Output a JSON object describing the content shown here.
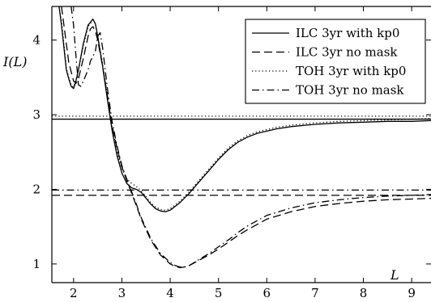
{
  "chart_data": {
    "type": "line",
    "title": "",
    "xlabel": "L",
    "ylabel": "I(L)",
    "xlim": [
      1.55,
      9.4
    ],
    "ylim": [
      0.75,
      4.45
    ],
    "x_ticks": [
      2,
      3,
      4,
      5,
      6,
      7,
      8,
      9
    ],
    "y_ticks": [
      1,
      2,
      3,
      4
    ],
    "x_tick_labels": [
      "2",
      "3",
      "4",
      "5",
      "6",
      "7",
      "8",
      "9"
    ],
    "y_tick_labels": [
      "1",
      "2",
      "3",
      "4"
    ],
    "grid": false,
    "legend_position": "top-right",
    "series": [
      {
        "name": "ILC 3yr with kp0",
        "style": "solid",
        "x": [
          1.7,
          1.75,
          1.8,
          1.85,
          1.9,
          1.95,
          2.0,
          2.05,
          2.1,
          2.2,
          2.3,
          2.4,
          2.45,
          2.5,
          2.6,
          2.7,
          2.8,
          2.9,
          3.0,
          3.1,
          3.2,
          3.3,
          3.4,
          3.5,
          3.6,
          3.7,
          3.8,
          3.9,
          4.0,
          4.2,
          4.4,
          4.6,
          4.8,
          5.0,
          5.2,
          5.4,
          5.6,
          5.8,
          6.0,
          6.2,
          6.5,
          7.0,
          7.5,
          8.0,
          8.5,
          9.0,
          9.4
        ],
        "y": [
          4.45,
          4.2,
          3.9,
          3.6,
          3.48,
          3.38,
          3.35,
          3.45,
          3.6,
          3.95,
          4.2,
          4.28,
          4.22,
          4.05,
          3.65,
          3.2,
          2.78,
          2.45,
          2.22,
          2.08,
          2.02,
          2.0,
          1.96,
          1.88,
          1.8,
          1.74,
          1.71,
          1.7,
          1.72,
          1.82,
          1.95,
          2.1,
          2.25,
          2.4,
          2.53,
          2.63,
          2.7,
          2.75,
          2.78,
          2.81,
          2.84,
          2.87,
          2.89,
          2.9,
          2.91,
          2.91,
          2.92
        ]
      },
      {
        "name": "ILC 3yr no mask",
        "style": "dashed",
        "x": [
          1.75,
          1.8,
          1.9,
          2.0,
          2.05,
          2.1,
          2.2,
          2.3,
          2.35,
          2.4,
          2.45,
          2.5,
          2.6,
          2.7,
          2.8,
          2.9,
          3.0,
          3.1,
          3.2,
          3.3,
          3.4,
          3.6,
          3.8,
          4.0,
          4.1,
          4.2,
          4.3,
          4.4,
          4.6,
          4.8,
          5.0,
          5.2,
          5.4,
          5.6,
          5.8,
          6.0,
          6.5,
          7.0,
          7.5,
          8.0,
          8.5,
          9.0,
          9.4
        ],
        "y": [
          4.45,
          4.2,
          3.7,
          3.45,
          3.42,
          3.48,
          3.75,
          4.05,
          4.15,
          4.18,
          4.12,
          4.0,
          3.65,
          3.25,
          2.85,
          2.55,
          2.3,
          2.12,
          1.95,
          1.78,
          1.6,
          1.32,
          1.12,
          1.0,
          0.97,
          0.95,
          0.96,
          0.98,
          1.05,
          1.12,
          1.2,
          1.29,
          1.38,
          1.46,
          1.53,
          1.6,
          1.7,
          1.77,
          1.81,
          1.84,
          1.86,
          1.87,
          1.88
        ]
      },
      {
        "name": "TOH 3yr with kp0",
        "style": "dotted",
        "x": [
          1.7,
          1.75,
          1.8,
          1.85,
          1.9,
          1.95,
          2.0,
          2.05,
          2.1,
          2.2,
          2.3,
          2.4,
          2.45,
          2.5,
          2.6,
          2.7,
          2.8,
          2.9,
          3.0,
          3.1,
          3.2,
          3.3,
          3.4,
          3.5,
          3.6,
          3.7,
          3.8,
          3.9,
          4.0,
          4.2,
          4.4,
          4.6,
          4.8,
          5.0,
          5.2,
          5.4,
          5.6,
          5.8,
          6.0,
          6.2,
          6.5,
          7.0,
          7.5,
          8.0,
          8.5,
          9.0,
          9.4
        ],
        "y": [
          4.45,
          4.25,
          3.95,
          3.62,
          3.5,
          3.4,
          3.37,
          3.47,
          3.6,
          3.92,
          4.18,
          4.27,
          4.22,
          4.06,
          3.68,
          3.25,
          2.82,
          2.5,
          2.28,
          2.14,
          2.08,
          2.04,
          1.98,
          1.9,
          1.82,
          1.76,
          1.73,
          1.72,
          1.74,
          1.84,
          1.97,
          2.12,
          2.27,
          2.42,
          2.55,
          2.65,
          2.72,
          2.77,
          2.8,
          2.83,
          2.86,
          2.89,
          2.91,
          2.92,
          2.93,
          2.94,
          2.95
        ]
      },
      {
        "name": "TOH 3yr no mask",
        "style": "dashdot",
        "x": [
          1.95,
          2.0,
          2.05,
          2.1,
          2.15,
          2.2,
          2.3,
          2.35,
          2.4,
          2.45,
          2.5,
          2.55,
          2.6,
          2.7,
          2.8,
          2.9,
          3.0,
          3.1,
          3.2,
          3.3,
          3.4,
          3.6,
          3.8,
          4.0,
          4.1,
          4.2,
          4.3,
          4.4,
          4.6,
          4.8,
          5.0,
          5.2,
          5.4,
          5.6,
          5.8,
          6.0,
          6.5,
          7.0,
          7.5,
          8.0,
          8.5,
          9.0,
          9.4
        ],
        "y": [
          4.45,
          4.2,
          3.78,
          3.4,
          3.38,
          3.45,
          3.6,
          3.72,
          3.78,
          3.85,
          4.05,
          4.1,
          3.9,
          3.35,
          2.9,
          2.58,
          2.32,
          2.14,
          1.97,
          1.8,
          1.62,
          1.34,
          1.14,
          1.02,
          0.98,
          0.96,
          0.96,
          0.98,
          1.06,
          1.14,
          1.23,
          1.32,
          1.42,
          1.51,
          1.58,
          1.65,
          1.75,
          1.82,
          1.86,
          1.89,
          1.91,
          1.92,
          1.93
        ]
      }
    ],
    "reference_lines": [
      {
        "series": "ILC 3yr with kp0",
        "style": "solid",
        "y": 2.94
      },
      {
        "series": "TOH 3yr with kp0",
        "style": "dotted",
        "y": 2.98
      },
      {
        "series": "TOH 3yr no mask",
        "style": "dashdot",
        "y": 1.99
      },
      {
        "series": "ILC 3yr no mask",
        "style": "dashed",
        "y": 1.92
      }
    ]
  }
}
